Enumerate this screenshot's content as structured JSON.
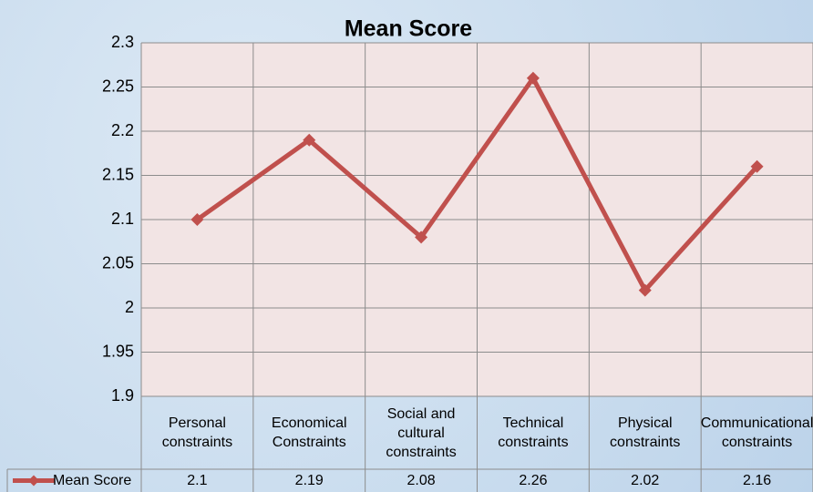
{
  "chart_data": {
    "type": "line",
    "title": "Mean Score",
    "categories": [
      "Personal constraints",
      "Economical Constraints",
      "Social and cultural constraints",
      "Technical constraints",
      "Physical constraints",
      "Communicational constraints"
    ],
    "series": [
      {
        "name": "Mean Score",
        "color": "#c0504d",
        "values": [
          2.1,
          2.19,
          2.08,
          2.26,
          2.02,
          2.16
        ]
      }
    ],
    "ylim": [
      1.9,
      2.3
    ],
    "yticks": [
      1.9,
      1.95,
      2,
      2.05,
      2.1,
      2.15,
      2.2,
      2.25,
      2.3
    ],
    "grid": true,
    "data_table": true
  }
}
